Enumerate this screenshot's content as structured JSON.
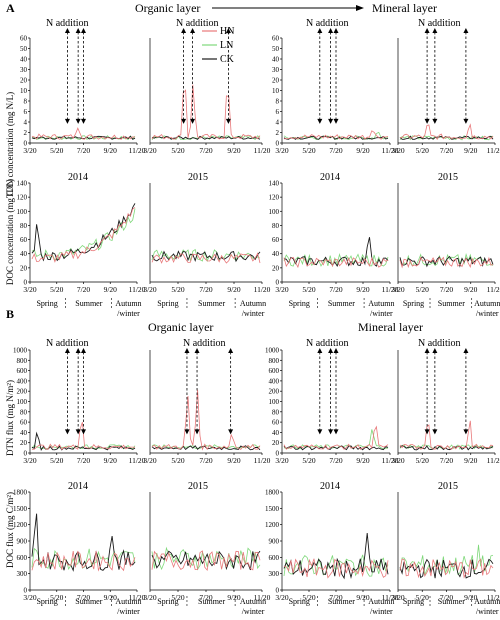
{
  "panel_a": {
    "letter": "A",
    "organic_title": "Organic layer",
    "mineral_title": "Mineral layer",
    "n_addition": "N addition",
    "legend": [
      {
        "name": "HN",
        "color": "#e8787a"
      },
      {
        "name": "LN",
        "color": "#7fd87a"
      },
      {
        "name": "CK",
        "color": "#1a1a1a"
      }
    ],
    "ylabel_top": "TDN concentration (mg N/L)",
    "ylabel_bottom": "DOC concentration (mg C/L)",
    "year_2014": "2014",
    "year_2015": "2015",
    "top_ticks": [
      "0",
      "2",
      "4",
      "6",
      "8",
      "10",
      "20",
      "30",
      "40",
      "50",
      "60"
    ],
    "bottom_ticks": [
      "0",
      "20",
      "40",
      "60",
      "80",
      "100",
      "120",
      "140"
    ],
    "x_ticks_2014": [
      "3/20",
      "5/20",
      "7/20",
      "9/20",
      "11/20"
    ],
    "x_ticks_2015": [
      "3/20",
      "5/20",
      "7/20",
      "9/20",
      "11/20"
    ],
    "seasons": [
      "Spring",
      "Summer",
      "Autumn",
      "/winter"
    ]
  },
  "panel_b": {
    "letter": "B",
    "organic_title": "Organic layer",
    "mineral_title": "Mineral layer",
    "n_addition": "N addition",
    "ylabel_top": "DTN flux (mg N/m²)",
    "ylabel_bottom": "DOC flux (mg C/m²)",
    "year_2014": "2014",
    "year_2015": "2015",
    "top_ticks": [
      "0",
      "20",
      "40",
      "60",
      "80",
      "100",
      "200",
      "400",
      "600",
      "800",
      "1000"
    ],
    "bottom_ticks": [
      "0",
      "300",
      "600",
      "900",
      "1200",
      "1500",
      "1800"
    ],
    "x_ticks_2014": [
      "3/20",
      "5/20",
      "7/20",
      "9/20",
      "11/20"
    ],
    "x_ticks_2015": [
      "3/20",
      "5/20",
      "7/20",
      "9/20",
      "11/20"
    ],
    "seasons": [
      "Spring",
      "Summer",
      "Autumn",
      "/winter"
    ]
  },
  "chart_data": [
    {
      "type": "line",
      "panel": "A",
      "variable": "TDN concentration",
      "layer": "Organic",
      "x": [
        "2014",
        "2015"
      ],
      "series": [
        {
          "name": "HN",
          "peak": 8
        },
        {
          "name": "LN",
          "peak": 4
        },
        {
          "name": "CK",
          "peak": 4
        }
      ],
      "ylim": [
        0,
        60
      ]
    },
    {
      "type": "line",
      "panel": "A",
      "variable": "TDN concentration",
      "layer": "Mineral",
      "x": [
        "2014",
        "2015"
      ],
      "series": [
        {
          "name": "HN",
          "peak": 8
        },
        {
          "name": "LN",
          "peak": 7
        },
        {
          "name": "CK",
          "peak": 3
        }
      ],
      "ylim": [
        0,
        60
      ]
    },
    {
      "type": "line",
      "panel": "A",
      "variable": "DOC concentration",
      "layer": "Organic",
      "x": [
        "2014",
        "2015"
      ],
      "series": [
        {
          "name": "HN",
          "peak": 115
        },
        {
          "name": "LN",
          "peak": 110
        },
        {
          "name": "CK",
          "peak": 108
        }
      ],
      "ylim": [
        0,
        140
      ]
    },
    {
      "type": "line",
      "panel": "A",
      "variable": "DOC concentration",
      "layer": "Mineral",
      "x": [
        "2014",
        "2015"
      ],
      "series": [
        {
          "name": "HN",
          "peak": 65
        },
        {
          "name": "LN",
          "peak": 60
        },
        {
          "name": "CK",
          "peak": 75
        }
      ],
      "ylim": [
        0,
        140
      ]
    },
    {
      "type": "line",
      "panel": "B",
      "variable": "DTN flux",
      "layer": "Organic",
      "x": [
        "2014",
        "2015"
      ],
      "series": [
        {
          "name": "HN",
          "peak": 600
        },
        {
          "name": "LN",
          "peak": 60
        },
        {
          "name": "CK",
          "peak": 60
        }
      ],
      "ylim": [
        0,
        1000
      ]
    },
    {
      "type": "line",
      "panel": "B",
      "variable": "DTN flux",
      "layer": "Mineral",
      "x": [
        "2014",
        "2015"
      ],
      "series": [
        {
          "name": "HN",
          "peak": 120
        },
        {
          "name": "LN",
          "peak": 90
        },
        {
          "name": "CK",
          "peak": 60
        }
      ],
      "ylim": [
        0,
        1000
      ]
    },
    {
      "type": "line",
      "panel": "B",
      "variable": "DOC flux",
      "layer": "Organic",
      "x": [
        "2014",
        "2015"
      ],
      "series": [
        {
          "name": "HN",
          "peak": 1300
        },
        {
          "name": "LN",
          "peak": 1200
        },
        {
          "name": "CK",
          "peak": 1500
        }
      ],
      "ylim": [
        0,
        1800
      ]
    },
    {
      "type": "line",
      "panel": "B",
      "variable": "DOC flux",
      "layer": "Mineral",
      "x": [
        "2014",
        "2015"
      ],
      "series": [
        {
          "name": "HN",
          "peak": 800
        },
        {
          "name": "LN",
          "peak": 900
        },
        {
          "name": "CK",
          "peak": 1050
        }
      ],
      "ylim": [
        0,
        1800
      ]
    }
  ]
}
